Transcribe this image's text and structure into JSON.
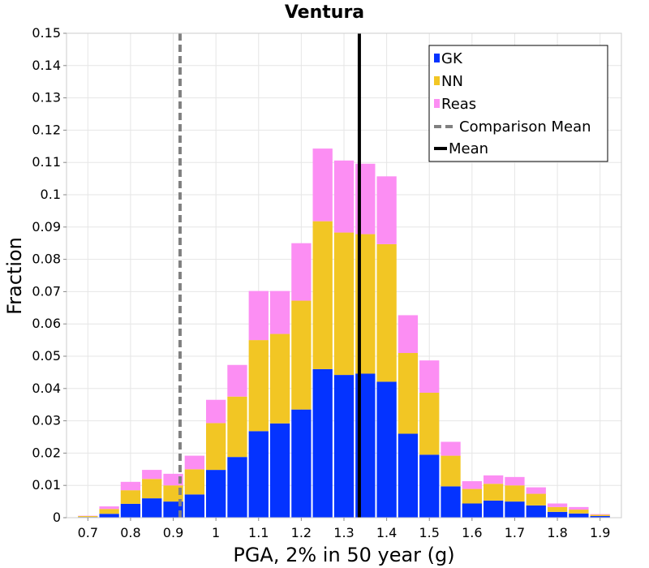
{
  "chart_data": {
    "type": "bar",
    "stacked": true,
    "title": "Ventura",
    "xlabel": "PGA, 2% in 50 year (g)",
    "ylabel": "Fraction",
    "xlim": [
      0.65,
      1.95
    ],
    "ylim": [
      0,
      0.15
    ],
    "bin_width": 0.05,
    "x_ticks": [
      0.7,
      0.8,
      0.9,
      1.0,
      1.1,
      1.2,
      1.3,
      1.4,
      1.5,
      1.6,
      1.7,
      1.8,
      1.9
    ],
    "x_tick_labels": [
      "0.7",
      "0.8",
      "0.9",
      "1",
      "1.1",
      "1.2",
      "1.3",
      "1.4",
      "1.5",
      "1.6",
      "1.7",
      "1.8",
      "1.9"
    ],
    "y_ticks": [
      0,
      0.01,
      0.02,
      0.03,
      0.04,
      0.05,
      0.06,
      0.07,
      0.08,
      0.09,
      0.1,
      0.11,
      0.12,
      0.13,
      0.14,
      0.15
    ],
    "y_tick_labels": [
      "0",
      "0.01",
      "0.02",
      "0.03",
      "0.04",
      "0.05",
      "0.06",
      "0.07",
      "0.08",
      "0.09",
      "0.1",
      "0.11",
      "0.12",
      "0.13",
      "0.14",
      "0.15"
    ],
    "bins": [
      0.7,
      0.75,
      0.8,
      0.85,
      0.9,
      0.95,
      1.0,
      1.05,
      1.1,
      1.15,
      1.2,
      1.25,
      1.3,
      1.35,
      1.4,
      1.45,
      1.5,
      1.55,
      1.6,
      1.65,
      1.7,
      1.75,
      1.8,
      1.85,
      1.9
    ],
    "series": [
      {
        "name": "GK",
        "color": "#0433ff",
        "values": [
          0.0002,
          0.0012,
          0.0043,
          0.006,
          0.005,
          0.0072,
          0.0148,
          0.0188,
          0.0268,
          0.0292,
          0.0335,
          0.046,
          0.0442,
          0.0446,
          0.0421,
          0.026,
          0.0195,
          0.0097,
          0.0044,
          0.0053,
          0.005,
          0.0038,
          0.0018,
          0.0013,
          0.0005
        ]
      },
      {
        "name": "NN",
        "color": "#f2c624",
        "values": [
          0.0003,
          0.0015,
          0.0042,
          0.006,
          0.005,
          0.0078,
          0.0145,
          0.0187,
          0.0282,
          0.0277,
          0.0337,
          0.0458,
          0.0441,
          0.0432,
          0.0426,
          0.025,
          0.0192,
          0.0095,
          0.0045,
          0.0052,
          0.005,
          0.0036,
          0.0015,
          0.0012,
          0.0004
        ]
      },
      {
        "name": "Reas",
        "color": "#fc8ef3",
        "values": [
          0.0001,
          0.0008,
          0.0026,
          0.0028,
          0.0036,
          0.0042,
          0.0072,
          0.0098,
          0.0152,
          0.0133,
          0.0178,
          0.0225,
          0.0223,
          0.0218,
          0.021,
          0.0117,
          0.01,
          0.0043,
          0.0024,
          0.0026,
          0.0026,
          0.002,
          0.0011,
          0.0008,
          0.0002
        ]
      }
    ],
    "lines": [
      {
        "name": "Comparison Mean",
        "x": 0.916,
        "color": "#808080",
        "style": "dashed"
      },
      {
        "name": "Mean",
        "x": 1.336,
        "color": "#000000",
        "style": "solid"
      }
    ],
    "legend": {
      "position": "top-right",
      "entries": [
        "GK",
        "NN",
        "Reas",
        "Comparison Mean",
        "Mean"
      ]
    }
  }
}
